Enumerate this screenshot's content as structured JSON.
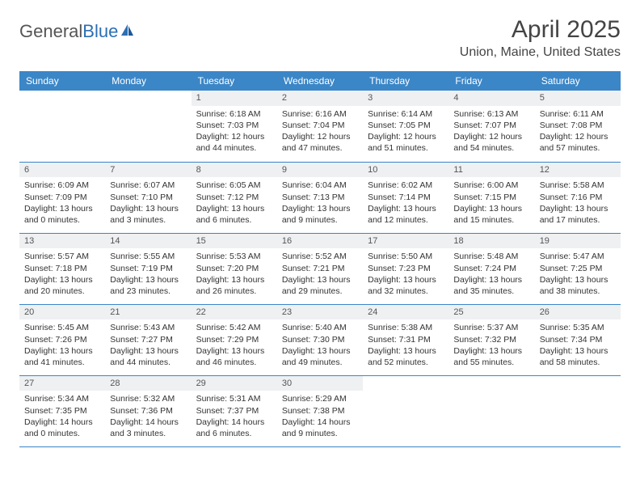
{
  "logo": {
    "text1": "General",
    "text2": "Blue"
  },
  "title": "April 2025",
  "location": "Union, Maine, United States",
  "colors": {
    "header_bg": "#3b86c7",
    "header_text": "#ffffff",
    "daynum_bg": "#eef0f2",
    "row_border": "#3b86c7",
    "logo_gray": "#555555",
    "logo_blue": "#2c6fb3",
    "title_color": "#444444",
    "body_text": "#333333",
    "background": "#ffffff"
  },
  "typography": {
    "font_family": "Arial",
    "title_size_pt": 22,
    "location_size_pt": 12,
    "dayhead_size_pt": 9,
    "body_size_pt": 8
  },
  "day_headers": [
    "Sunday",
    "Monday",
    "Tuesday",
    "Wednesday",
    "Thursday",
    "Friday",
    "Saturday"
  ],
  "labels": {
    "sunrise": "Sunrise:",
    "sunset": "Sunset:",
    "daylight": "Daylight:"
  },
  "weeks": [
    [
      {
        "day": "",
        "sunrise": "",
        "sunset": "",
        "daylight1": "",
        "daylight2": ""
      },
      {
        "day": "",
        "sunrise": "",
        "sunset": "",
        "daylight1": "",
        "daylight2": ""
      },
      {
        "day": "1",
        "sunrise": "6:18 AM",
        "sunset": "7:03 PM",
        "daylight1": "12 hours",
        "daylight2": "and 44 minutes."
      },
      {
        "day": "2",
        "sunrise": "6:16 AM",
        "sunset": "7:04 PM",
        "daylight1": "12 hours",
        "daylight2": "and 47 minutes."
      },
      {
        "day": "3",
        "sunrise": "6:14 AM",
        "sunset": "7:05 PM",
        "daylight1": "12 hours",
        "daylight2": "and 51 minutes."
      },
      {
        "day": "4",
        "sunrise": "6:13 AM",
        "sunset": "7:07 PM",
        "daylight1": "12 hours",
        "daylight2": "and 54 minutes."
      },
      {
        "day": "5",
        "sunrise": "6:11 AM",
        "sunset": "7:08 PM",
        "daylight1": "12 hours",
        "daylight2": "and 57 minutes."
      }
    ],
    [
      {
        "day": "6",
        "sunrise": "6:09 AM",
        "sunset": "7:09 PM",
        "daylight1": "13 hours",
        "daylight2": "and 0 minutes."
      },
      {
        "day": "7",
        "sunrise": "6:07 AM",
        "sunset": "7:10 PM",
        "daylight1": "13 hours",
        "daylight2": "and 3 minutes."
      },
      {
        "day": "8",
        "sunrise": "6:05 AM",
        "sunset": "7:12 PM",
        "daylight1": "13 hours",
        "daylight2": "and 6 minutes."
      },
      {
        "day": "9",
        "sunrise": "6:04 AM",
        "sunset": "7:13 PM",
        "daylight1": "13 hours",
        "daylight2": "and 9 minutes."
      },
      {
        "day": "10",
        "sunrise": "6:02 AM",
        "sunset": "7:14 PM",
        "daylight1": "13 hours",
        "daylight2": "and 12 minutes."
      },
      {
        "day": "11",
        "sunrise": "6:00 AM",
        "sunset": "7:15 PM",
        "daylight1": "13 hours",
        "daylight2": "and 15 minutes."
      },
      {
        "day": "12",
        "sunrise": "5:58 AM",
        "sunset": "7:16 PM",
        "daylight1": "13 hours",
        "daylight2": "and 17 minutes."
      }
    ],
    [
      {
        "day": "13",
        "sunrise": "5:57 AM",
        "sunset": "7:18 PM",
        "daylight1": "13 hours",
        "daylight2": "and 20 minutes."
      },
      {
        "day": "14",
        "sunrise": "5:55 AM",
        "sunset": "7:19 PM",
        "daylight1": "13 hours",
        "daylight2": "and 23 minutes."
      },
      {
        "day": "15",
        "sunrise": "5:53 AM",
        "sunset": "7:20 PM",
        "daylight1": "13 hours",
        "daylight2": "and 26 minutes."
      },
      {
        "day": "16",
        "sunrise": "5:52 AM",
        "sunset": "7:21 PM",
        "daylight1": "13 hours",
        "daylight2": "and 29 minutes."
      },
      {
        "day": "17",
        "sunrise": "5:50 AM",
        "sunset": "7:23 PM",
        "daylight1": "13 hours",
        "daylight2": "and 32 minutes."
      },
      {
        "day": "18",
        "sunrise": "5:48 AM",
        "sunset": "7:24 PM",
        "daylight1": "13 hours",
        "daylight2": "and 35 minutes."
      },
      {
        "day": "19",
        "sunrise": "5:47 AM",
        "sunset": "7:25 PM",
        "daylight1": "13 hours",
        "daylight2": "and 38 minutes."
      }
    ],
    [
      {
        "day": "20",
        "sunrise": "5:45 AM",
        "sunset": "7:26 PM",
        "daylight1": "13 hours",
        "daylight2": "and 41 minutes."
      },
      {
        "day": "21",
        "sunrise": "5:43 AM",
        "sunset": "7:27 PM",
        "daylight1": "13 hours",
        "daylight2": "and 44 minutes."
      },
      {
        "day": "22",
        "sunrise": "5:42 AM",
        "sunset": "7:29 PM",
        "daylight1": "13 hours",
        "daylight2": "and 46 minutes."
      },
      {
        "day": "23",
        "sunrise": "5:40 AM",
        "sunset": "7:30 PM",
        "daylight1": "13 hours",
        "daylight2": "and 49 minutes."
      },
      {
        "day": "24",
        "sunrise": "5:38 AM",
        "sunset": "7:31 PM",
        "daylight1": "13 hours",
        "daylight2": "and 52 minutes."
      },
      {
        "day": "25",
        "sunrise": "5:37 AM",
        "sunset": "7:32 PM",
        "daylight1": "13 hours",
        "daylight2": "and 55 minutes."
      },
      {
        "day": "26",
        "sunrise": "5:35 AM",
        "sunset": "7:34 PM",
        "daylight1": "13 hours",
        "daylight2": "and 58 minutes."
      }
    ],
    [
      {
        "day": "27",
        "sunrise": "5:34 AM",
        "sunset": "7:35 PM",
        "daylight1": "14 hours",
        "daylight2": "and 0 minutes."
      },
      {
        "day": "28",
        "sunrise": "5:32 AM",
        "sunset": "7:36 PM",
        "daylight1": "14 hours",
        "daylight2": "and 3 minutes."
      },
      {
        "day": "29",
        "sunrise": "5:31 AM",
        "sunset": "7:37 PM",
        "daylight1": "14 hours",
        "daylight2": "and 6 minutes."
      },
      {
        "day": "30",
        "sunrise": "5:29 AM",
        "sunset": "7:38 PM",
        "daylight1": "14 hours",
        "daylight2": "and 9 minutes."
      },
      {
        "day": "",
        "sunrise": "",
        "sunset": "",
        "daylight1": "",
        "daylight2": ""
      },
      {
        "day": "",
        "sunrise": "",
        "sunset": "",
        "daylight1": "",
        "daylight2": ""
      },
      {
        "day": "",
        "sunrise": "",
        "sunset": "",
        "daylight1": "",
        "daylight2": ""
      }
    ]
  ]
}
